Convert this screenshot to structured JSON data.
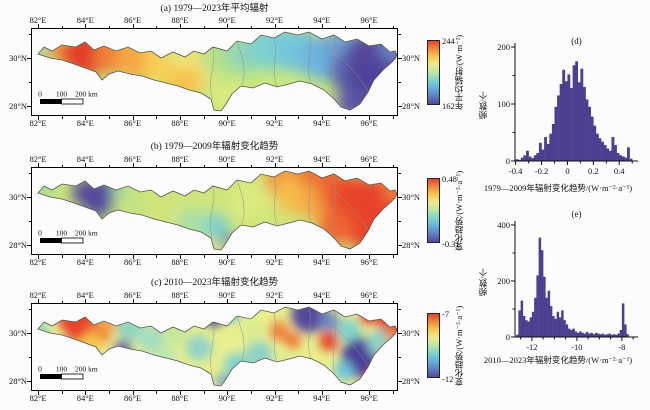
{
  "panels": {
    "a": {
      "title": "(a) 1979—2023年平均辐射",
      "colorbar": {
        "max": "244",
        "min": "162",
        "label": "年平均辐射/(W·m⁻²)"
      }
    },
    "b": {
      "title": "(b) 1979—2009年辐射变化趋势",
      "colorbar": {
        "max": "0.48",
        "min": "-0.31",
        "label": "变化趋势/(W·m⁻²·a⁻¹)"
      }
    },
    "c": {
      "title": "(c) 2010—2023年辐射变化趋势",
      "colorbar": {
        "max": "-7",
        "min": "-12",
        "label": "变化趋势/(W·m⁻²·a⁻¹)"
      }
    }
  },
  "map_axis": {
    "lon_ticks": [
      "82°E",
      "84°E",
      "86°E",
      "88°E",
      "90°E",
      "92°E",
      "94°E",
      "96°E"
    ],
    "lat_ticks": [
      "30°N",
      "28°N"
    ]
  },
  "scalebar": {
    "labels": [
      "0",
      "100",
      "200 km"
    ]
  },
  "histograms": {
    "d": {
      "title": "(d)",
      "ylabel": "频数/个",
      "xlabel": "1979—2009年辐射变化趋势/(W·m⁻²·a⁻¹)",
      "yticks": [
        "0",
        "100",
        "200"
      ],
      "xticks": [
        "-0.4",
        "-0.2",
        "0",
        "0.2",
        "0.4"
      ]
    },
    "e": {
      "title": "(e)",
      "ylabel": "频数/个",
      "xlabel": "2010—2023年辐射变化趋势/(W·m⁻²·a⁻¹)",
      "yticks": [
        "0",
        "200",
        "400"
      ],
      "xticks": [
        "-12",
        "-10",
        "-8"
      ]
    }
  },
  "colors": {
    "histogram_bar": "#4e3e90",
    "axis": "#111111",
    "map_outline": "#555555",
    "sub_basin_line": "#8f8f8f",
    "colorbar_gradient": [
      "#e5432d",
      "#f08a3e",
      "#f8ca52",
      "#eeea90",
      "#b9e5a5",
      "#7fd2cc",
      "#66b0dc",
      "#5c7fc0",
      "#51489b"
    ]
  },
  "chart_data": [
    {
      "type": "heatmap",
      "panel": "a",
      "title": "(a) 1979—2023年平均辐射",
      "colorbar_label": "年平均辐射/(W·m⁻²)",
      "value_range": [
        162,
        244
      ],
      "lon_ticks": [
        82,
        84,
        86,
        88,
        90,
        92,
        94,
        96
      ],
      "lat_ticks": [
        30,
        28
      ],
      "pattern": "西部83—85°E辐射最高约240 W·m⁻²(红色),向东逐渐降低,93°E以东东南部最低约165 W·m⁻²(紫色)"
    },
    {
      "type": "heatmap",
      "panel": "b",
      "title": "(b) 1979—2009年辐射变化趋势",
      "colorbar_label": "变化趋势/(W·m⁻²·a⁻¹)",
      "value_range": [
        -0.31,
        0.48
      ],
      "lon_ticks": [
        82,
        84,
        86,
        88,
        90,
        92,
        94,
        96
      ],
      "lat_ticks": [
        30,
        28
      ],
      "pattern": "83—84.5°E出现显著负趋势(紫色斑块),中部接近0(黄绿色),88—89.5°E南缘弱负(青色),92°E以东大范围强正趋势(红色)"
    },
    {
      "type": "heatmap",
      "panel": "c",
      "title": "(c) 2010—2023年辐射变化趋势",
      "colorbar_label": "变化趋势/(W·m⁻²·a⁻¹)",
      "value_range": [
        -12,
        -7
      ],
      "lon_ticks": [
        82,
        84,
        86,
        88,
        90,
        92,
        94,
        96
      ],
      "lat_ticks": [
        30,
        28
      ],
      "pattern": "全区均为负趋势;西端83°E、东北边缘及东端约-7(红色),88°E、91.5—92.5°E北部和93.5—94.5°E等地约-12(紫色斑块),其余为黄-青镶嵌"
    },
    {
      "type": "bar",
      "panel": "d",
      "title": "(d)",
      "xlabel": "1979—2009年辐射变化趋势/(W·m⁻²·a⁻¹)",
      "ylabel": "频数/个",
      "xlim": [
        -0.45,
        0.55
      ],
      "ylim": [
        0,
        200
      ],
      "bin_start": -0.4,
      "bin_width": 0.02,
      "values": [
        3,
        2,
        6,
        10,
        18,
        8,
        5,
        10,
        14,
        32,
        20,
        42,
        30,
        48,
        65,
        95,
        115,
        135,
        160,
        140,
        152,
        128,
        168,
        175,
        138,
        162,
        130,
        108,
        95,
        78,
        62,
        48,
        40,
        34,
        28,
        22,
        18,
        42,
        28,
        14,
        10,
        8,
        6,
        24,
        4
      ]
    },
    {
      "type": "bar",
      "panel": "e",
      "title": "(e)",
      "xlabel": "2010—2023年辐射变化趋势/(W·m⁻²·a⁻¹)",
      "ylabel": "频数/个",
      "xlim": [
        -12.75,
        -7.3
      ],
      "ylim": [
        0,
        400
      ],
      "bin_start": -12.7,
      "bin_width": 0.1,
      "values": [
        8,
        95,
        130,
        75,
        60,
        55,
        70,
        90,
        140,
        220,
        355,
        310,
        215,
        140,
        165,
        110,
        75,
        65,
        90,
        70,
        95,
        60,
        45,
        30,
        25,
        30,
        20,
        15,
        20,
        15,
        12,
        18,
        12,
        15,
        10,
        15,
        12,
        10,
        12,
        8,
        10,
        12,
        8,
        10,
        8,
        12,
        25,
        120,
        45,
        10
      ]
    }
  ]
}
